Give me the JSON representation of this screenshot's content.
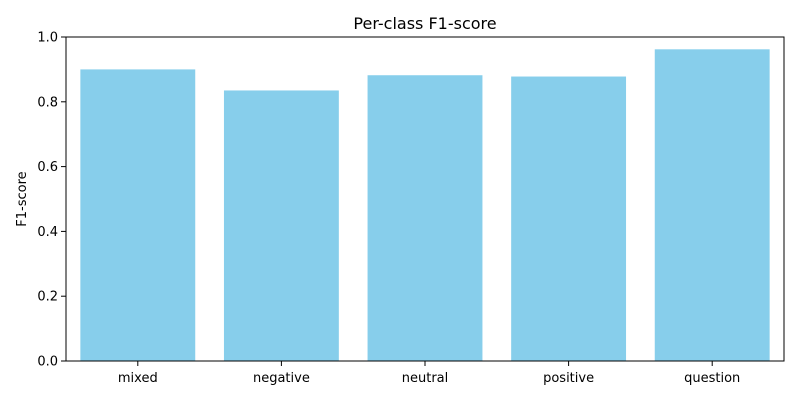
{
  "chart_data": {
    "type": "bar",
    "title": "Per-class F1-score",
    "xlabel": "",
    "ylabel": "F1-score",
    "categories": [
      "mixed",
      "negative",
      "neutral",
      "positive",
      "question"
    ],
    "values": [
      0.9,
      0.835,
      0.882,
      0.878,
      0.962
    ],
    "ylim": [
      0,
      1.0
    ],
    "yticks": [
      0.0,
      0.2,
      0.4,
      0.6,
      0.8,
      1.0
    ],
    "ytick_labels": [
      "0.0",
      "0.2",
      "0.4",
      "0.6",
      "0.8",
      "1.0"
    ],
    "bar_color": "#87CEEB",
    "grid": false,
    "legend": false
  }
}
